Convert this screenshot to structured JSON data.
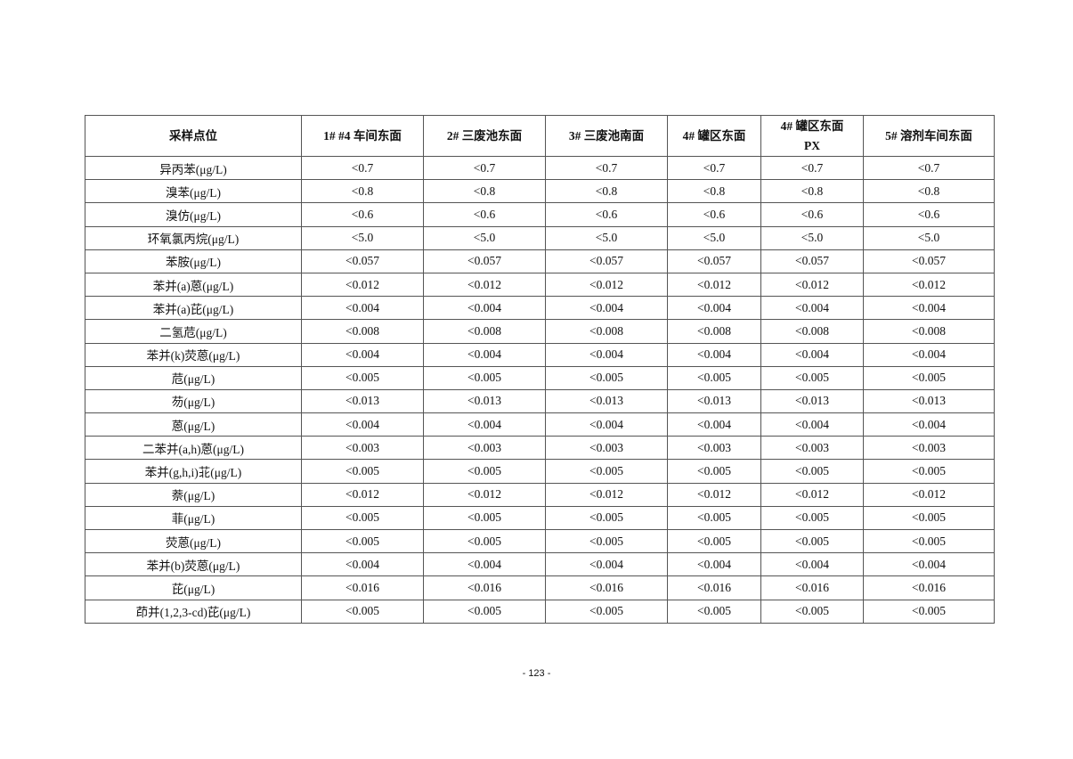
{
  "table": {
    "headers": [
      "采样点位",
      "1# #4 车间东面",
      "2#  三废池东面",
      "3#  三废池南面",
      "4#  罐区东面",
      "4#  罐区东面\nPX",
      "5#  溶剂车间东面"
    ],
    "rows": [
      {
        "label": "异丙苯(μg/L)",
        "value": "<0.7"
      },
      {
        "label": "溴苯(μg/L)",
        "value": "<0.8"
      },
      {
        "label": "溴仿(μg/L)",
        "value": "<0.6"
      },
      {
        "label": "环氧氯丙烷(μg/L)",
        "value": "<5.0"
      },
      {
        "label": "苯胺(μg/L)",
        "value": "<0.057"
      },
      {
        "label": "苯并(a)蒽(μg/L)",
        "value": "<0.012"
      },
      {
        "label": "苯并(a)芘(μg/L)",
        "value": "<0.004"
      },
      {
        "label": "二氢苊(μg/L)",
        "value": "<0.008"
      },
      {
        "label": "苯并(k)荧蒽(μg/L)",
        "value": "<0.004"
      },
      {
        "label": "苊(μg/L)",
        "value": "<0.005"
      },
      {
        "label": "芴(μg/L)",
        "value": "<0.013"
      },
      {
        "label": "蒽(μg/L)",
        "value": "<0.004"
      },
      {
        "label": "二苯并(a,h)蒽(μg/L)",
        "value": "<0.003"
      },
      {
        "label": "苯并(g,h,i)苝(μg/L)",
        "value": "<0.005"
      },
      {
        "label": "萘(μg/L)",
        "value": "<0.012"
      },
      {
        "label": "菲(μg/L)",
        "value": "<0.005"
      },
      {
        "label": "荧蒽(μg/L)",
        "value": "<0.005"
      },
      {
        "label": "苯并(b)荧蒽(μg/L)",
        "value": "<0.004"
      },
      {
        "label": "芘(μg/L)",
        "value": "<0.016"
      },
      {
        "label": "茚并(1,2,3-cd)芘(μg/L)",
        "value": "<0.005"
      }
    ]
  },
  "footer": {
    "page": "- 123 -"
  }
}
